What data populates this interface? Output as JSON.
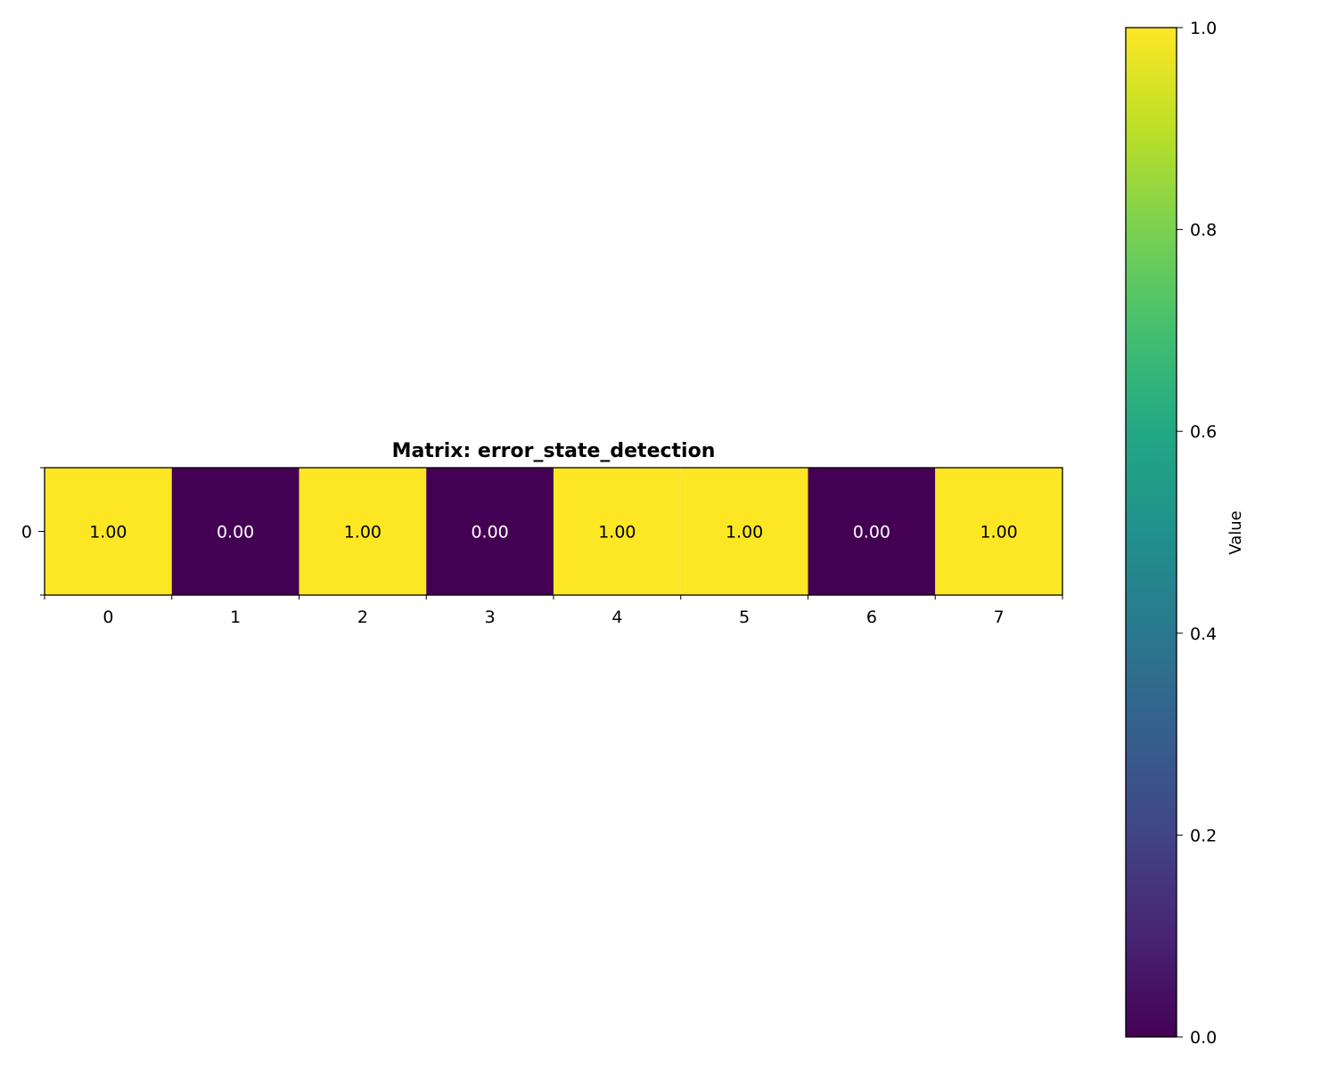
{
  "chart_data": {
    "type": "heatmap",
    "title": "Matrix: error_state_detection",
    "rows": [
      "0"
    ],
    "columns": [
      "0",
      "1",
      "2",
      "3",
      "4",
      "5",
      "6",
      "7"
    ],
    "values": [
      [
        1.0,
        0.0,
        1.0,
        0.0,
        1.0,
        1.0,
        0.0,
        1.0
      ]
    ],
    "cell_labels": [
      [
        "1.00",
        "0.00",
        "1.00",
        "0.00",
        "1.00",
        "1.00",
        "0.00",
        "1.00"
      ]
    ],
    "colormap": "viridis",
    "colors": {
      "low": "#440154",
      "high": "#fde725"
    },
    "colorbar": {
      "label": "Value",
      "range": [
        0,
        1
      ],
      "ticks": [
        0.0,
        0.2,
        0.4,
        0.6,
        0.8,
        1.0
      ],
      "tick_labels": [
        "0.0",
        "0.2",
        "0.4",
        "0.6",
        "0.8",
        "1.0"
      ]
    }
  }
}
